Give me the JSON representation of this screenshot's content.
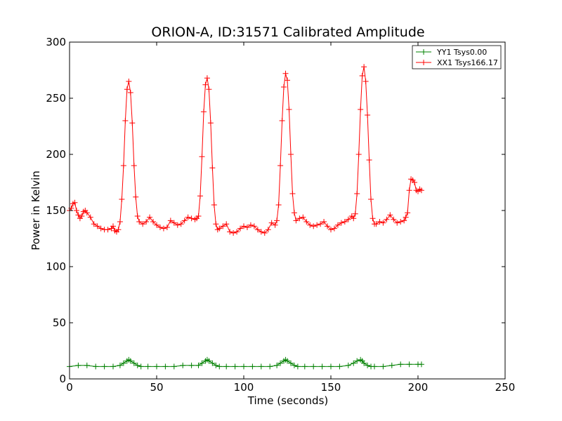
{
  "chart_data": {
    "type": "line",
    "title": "ORION-A, ID:31571 Calibrated Amplitude",
    "xlabel": "Time (seconds)",
    "ylabel": "Power in Kelvin",
    "xlim": [
      0,
      250
    ],
    "ylim": [
      0,
      300
    ],
    "xticks": [
      "0",
      "50",
      "100",
      "150",
      "200",
      "250"
    ],
    "yticks": [
      "0",
      "50",
      "100",
      "150",
      "200",
      "250",
      "300"
    ],
    "grid": false,
    "legend_position": "top-right",
    "marker": "+",
    "series": [
      {
        "name": "YY1 Tsys0.00",
        "color": "#008000",
        "x": [
          0,
          5,
          10,
          15,
          20,
          25,
          29,
          31,
          33,
          34,
          35,
          37,
          39,
          41,
          45,
          50,
          55,
          60,
          65,
          70,
          74,
          76,
          78,
          79,
          80,
          82,
          84,
          86,
          90,
          95,
          100,
          105,
          110,
          115,
          119,
          121,
          123,
          124,
          125,
          127,
          129,
          131,
          135,
          140,
          145,
          150,
          155,
          160,
          163,
          165,
          167,
          168,
          169,
          171,
          173,
          175,
          180,
          185,
          190,
          195,
          200,
          202
        ],
        "y": [
          11,
          12,
          12,
          11,
          11,
          11,
          12,
          14,
          16,
          17,
          16,
          14,
          12,
          11,
          11,
          11,
          11,
          11,
          12,
          12,
          12,
          14,
          16,
          17,
          16,
          14,
          12,
          11,
          11,
          11,
          11,
          11,
          11,
          11,
          12,
          14,
          16,
          17,
          16,
          14,
          12,
          11,
          11,
          11,
          11,
          11,
          11,
          12,
          14,
          16,
          17,
          16,
          14,
          12,
          11,
          11,
          11,
          12,
          13,
          13,
          13,
          13
        ]
      },
      {
        "name": "XX1 Tsys166.17",
        "color": "#ff0000",
        "x": [
          0,
          1,
          2,
          3,
          4,
          5,
          6,
          7,
          8,
          9,
          10,
          12,
          14,
          16,
          18,
          20,
          22,
          24,
          25,
          26,
          27,
          28,
          29,
          30,
          31,
          32,
          33,
          34,
          35,
          36,
          37,
          38,
          39,
          40,
          42,
          44,
          46,
          48,
          50,
          52,
          54,
          56,
          58,
          60,
          62,
          64,
          66,
          68,
          70,
          72,
          73,
          74,
          75,
          76,
          77,
          78,
          79,
          80,
          81,
          82,
          83,
          84,
          85,
          86,
          88,
          90,
          92,
          94,
          96,
          98,
          100,
          102,
          104,
          106,
          108,
          110,
          112,
          114,
          116,
          118,
          119,
          120,
          121,
          122,
          123,
          124,
          125,
          126,
          127,
          128,
          129,
          130,
          132,
          134,
          136,
          138,
          140,
          142,
          144,
          146,
          148,
          150,
          152,
          154,
          156,
          158,
          160,
          162,
          163,
          164,
          165,
          166,
          167,
          168,
          169,
          170,
          171,
          172,
          173,
          174,
          175,
          176,
          178,
          180,
          182,
          184,
          186,
          188,
          190,
          192,
          193,
          194,
          195,
          196,
          197,
          198,
          199,
          200,
          201,
          202
        ],
        "y": [
          150,
          152,
          156,
          157,
          150,
          146,
          143,
          145,
          149,
          150,
          148,
          144,
          138,
          136,
          134,
          133,
          133,
          134,
          136,
          132,
          131,
          133,
          140,
          160,
          190,
          230,
          258,
          265,
          255,
          228,
          190,
          162,
          145,
          140,
          138,
          140,
          144,
          140,
          137,
          135,
          134,
          135,
          141,
          139,
          137,
          138,
          141,
          144,
          143,
          142,
          143,
          145,
          163,
          198,
          238,
          262,
          268,
          258,
          228,
          188,
          155,
          138,
          133,
          134,
          136,
          138,
          131,
          130,
          131,
          134,
          136,
          135,
          137,
          136,
          133,
          131,
          130,
          133,
          139,
          137,
          141,
          155,
          190,
          230,
          260,
          272,
          266,
          240,
          200,
          165,
          148,
          141,
          143,
          144,
          140,
          137,
          136,
          137,
          138,
          140,
          136,
          133,
          134,
          137,
          139,
          140,
          142,
          145,
          143,
          147,
          165,
          200,
          240,
          270,
          278,
          265,
          235,
          195,
          160,
          143,
          138,
          138,
          140,
          139,
          142,
          146,
          142,
          139,
          140,
          141,
          144,
          148,
          168,
          178,
          177,
          175,
          168,
          167,
          169,
          168
        ]
      }
    ]
  }
}
